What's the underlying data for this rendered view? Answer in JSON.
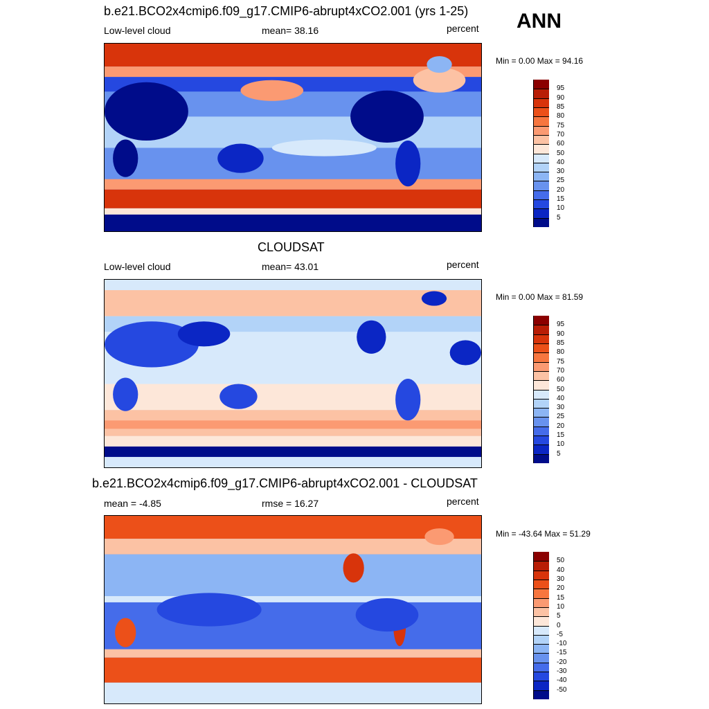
{
  "season": "ANN",
  "panels": [
    {
      "title": "b.e21.BCO2x4cmip6.f09_g17.CMIP6-abrupt4xCO2.001 (yrs 1-25)",
      "left_label": "Low-level cloud",
      "center_label": "mean=  38.16",
      "units": "percent",
      "minmax": "Min =   0.00 Max =  94.16",
      "mean": 38.16,
      "min": 0.0,
      "max": 94.16,
      "field": "model"
    },
    {
      "title": "CLOUDSAT",
      "left_label": "Low-level cloud",
      "center_label": "mean=  43.01",
      "units": "percent",
      "minmax": "Min =   0.00 Max =  81.59",
      "mean": 43.01,
      "min": 0.0,
      "max": 81.59,
      "field": "obs"
    },
    {
      "title": "b.e21.BCO2x4cmip6.f09_g17.CMIP6-abrupt4xCO2.001 - CLOUDSAT",
      "left_label": "mean =  -4.85",
      "center_label": "rmse =  16.27",
      "units": "percent",
      "minmax": "Min = -43.64 Max =  51.29",
      "mean": -4.85,
      "rmse": 16.27,
      "min": -43.64,
      "max": 51.29,
      "field": "diff"
    }
  ],
  "colorbars": {
    "absolute": {
      "labels": [
        "95",
        "90",
        "85",
        "80",
        "75",
        "70",
        "60",
        "50",
        "40",
        "30",
        "25",
        "20",
        "15",
        "10",
        "5"
      ],
      "colors": [
        "#8b0000",
        "#b81d06",
        "#d8340b",
        "#ec5019",
        "#f7763f",
        "#fb9a72",
        "#fcc2a4",
        "#fde7d9",
        "#d7e9fb",
        "#b2d3f8",
        "#8cb5f4",
        "#6892ee",
        "#456cea",
        "#2548e0",
        "#0b26c4",
        "#000c8a"
      ]
    },
    "difference": {
      "labels": [
        "50",
        "40",
        "30",
        "20",
        "15",
        "10",
        "5",
        "0",
        "-5",
        "-10",
        "-15",
        "-20",
        "-30",
        "-40",
        "-50"
      ],
      "colors": [
        "#8b0000",
        "#b81d06",
        "#d8340b",
        "#ec5019",
        "#f7763f",
        "#fb9a72",
        "#fcc2a4",
        "#fde7d9",
        "#d7e9fb",
        "#b2d3f8",
        "#8cb5f4",
        "#6892ee",
        "#456cea",
        "#2548e0",
        "#0b26c4",
        "#000c8a"
      ]
    }
  }
}
